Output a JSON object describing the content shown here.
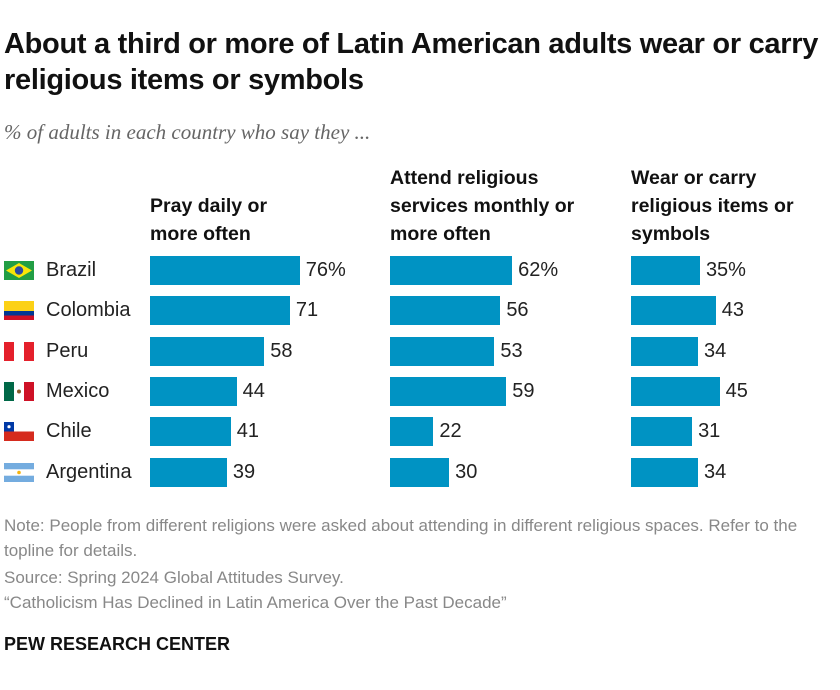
{
  "chart_data": {
    "type": "bar",
    "orientation": "horizontal",
    "title": "About a third or more of Latin American adults wear or carry religious items or symbols",
    "subtitle": "% of adults in each country who say they ...",
    "categories": [
      "Brazil",
      "Colombia",
      "Peru",
      "Mexico",
      "Chile",
      "Argentina"
    ],
    "series": [
      {
        "name": "Pray daily or more often",
        "values": [
          76,
          71,
          58,
          44,
          41,
          39
        ]
      },
      {
        "name": "Attend religious services monthly or more often",
        "values": [
          62,
          56,
          53,
          59,
          22,
          30
        ]
      },
      {
        "name": "Wear or carry religious items or symbols",
        "values": [
          35,
          43,
          34,
          45,
          31,
          34
        ]
      }
    ],
    "value_suffix_first_row": "%",
    "bar_color": "#0093c3",
    "xlim": [
      0,
      100
    ],
    "grid": false
  },
  "flags": [
    "brazil-flag",
    "colombia-flag",
    "peru-flag",
    "mexico-flag",
    "chile-flag",
    "argentina-flag"
  ],
  "notes": [
    "Note: People from different religions were asked about attending in different religious spaces. Refer to the topline for details.",
    "Source: Spring 2024 Global Attitudes Survey.",
    "“Catholicism Has Declined in Latin America Over the Past Decade”"
  ],
  "brand": "PEW RESEARCH CENTER"
}
